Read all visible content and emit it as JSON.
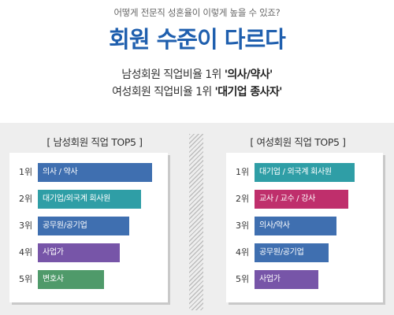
{
  "header": {
    "kicker": "어떻게 전문직 성혼율이 이렇게 높을 수 있죠?",
    "headline": "회원 수준이 다르다",
    "male_stat_prefix": "남성회원 직업비율 1위 ",
    "male_stat_value": "'의사/약사'",
    "female_stat_prefix": "여성회원 직업비율 1위 ",
    "female_stat_value": "'대기업 종사자'"
  },
  "chart_data": [
    {
      "type": "bar",
      "orientation": "horizontal",
      "title": "[ 남성회원 직업 TOP5 ]",
      "ranks": [
        "1위",
        "2위",
        "3위",
        "4위",
        "5위"
      ],
      "categories": [
        "의사 / 약사",
        "대기업/외국계 회사원",
        "공무원/공기업",
        "사업가",
        "변호사"
      ],
      "values": [
        5,
        4.5,
        4,
        3.6,
        2.9
      ],
      "colors": [
        "#3f6fb0",
        "#2f9ea6",
        "#3f6fb0",
        "#7755a8",
        "#4f9a6a"
      ]
    },
    {
      "type": "bar",
      "orientation": "horizontal",
      "title": "[ 여성회원 직업 TOP5 ]",
      "ranks": [
        "1위",
        "2위",
        "3위",
        "4위",
        "5위"
      ],
      "categories": [
        "대기업 / 외국계 회사원",
        "교사 / 교수 / 강사",
        "의사/약사",
        "공무원/공기업",
        "사업가"
      ],
      "values": [
        5,
        4.7,
        4.1,
        3.7,
        3.2
      ],
      "colors": [
        "#2f9ea6",
        "#bf2f6c",
        "#3f6fb0",
        "#3f6fb0",
        "#7755a8"
      ]
    }
  ]
}
